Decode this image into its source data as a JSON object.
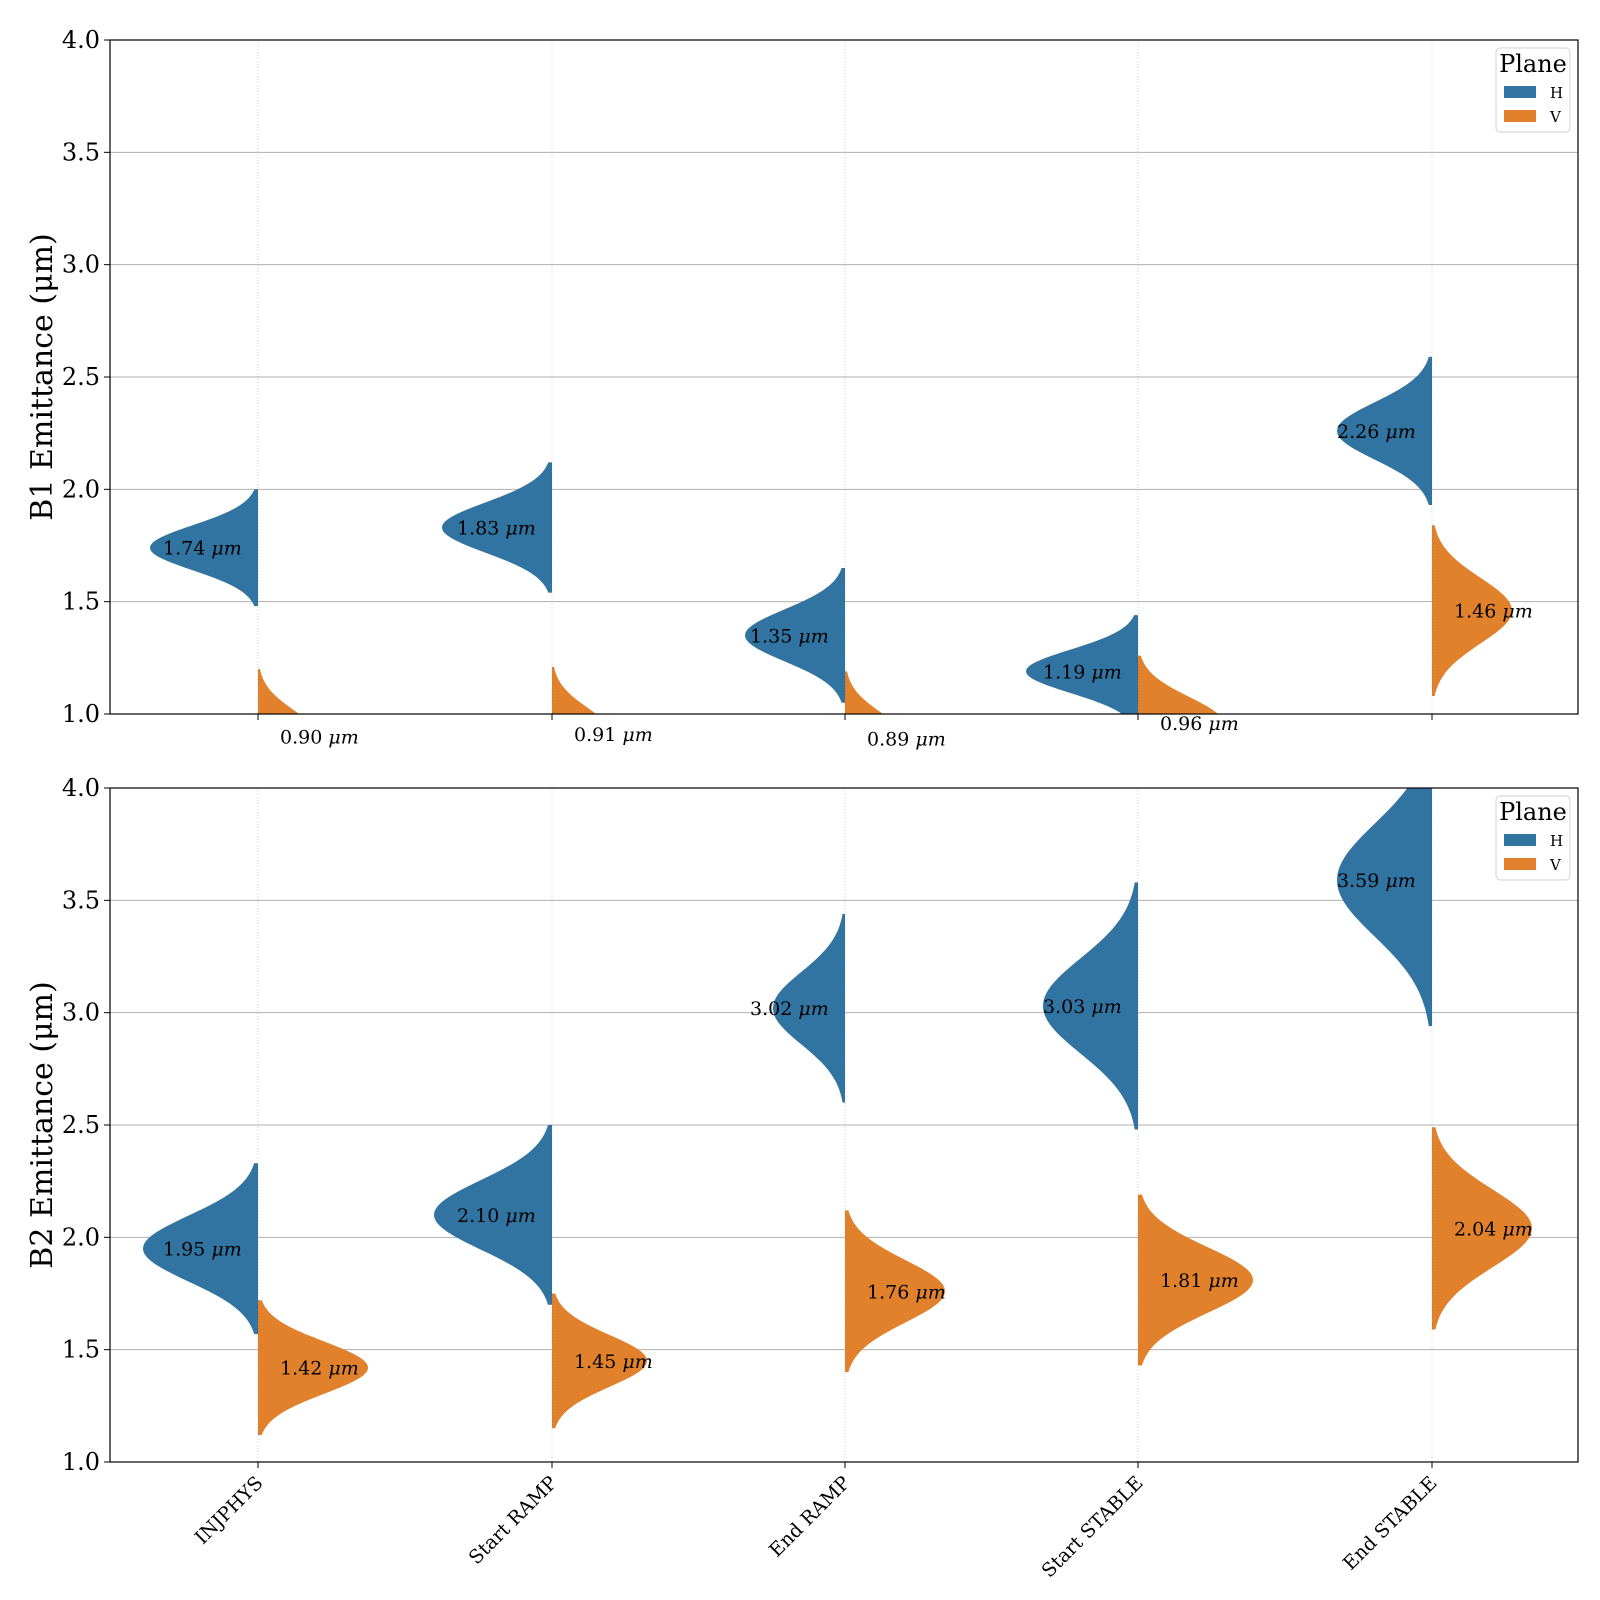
{
  "colors": {
    "H": "#3274a1",
    "V": "#e1812c",
    "grid": "#b0b0b0"
  },
  "chart_data": [
    {
      "type": "violin",
      "ylabel": "B1 Emittance (μm)",
      "ylim": [
        1.0,
        4.0
      ],
      "yticks": [
        "1.0",
        "1.5",
        "2.0",
        "2.5",
        "3.0",
        "3.5",
        "4.0"
      ],
      "grid": "horizontal",
      "legend": {
        "title": "Plane",
        "entries": [
          "H",
          "V"
        ],
        "position": "top-right"
      },
      "categories": [
        "INJPHYS",
        "Start RAMP",
        "End RAMP",
        "Start STABLE",
        "End STABLE"
      ],
      "series": [
        {
          "name": "H",
          "side": "left",
          "medians": [
            1.74,
            1.83,
            1.35,
            1.19,
            2.26
          ],
          "labels": [
            "1.74 μm",
            "1.83 μm",
            "1.35 μm",
            "1.19 μm",
            "2.26 μm"
          ]
        },
        {
          "name": "V",
          "side": "right",
          "medians": [
            0.9,
            0.91,
            0.89,
            0.96,
            1.46
          ],
          "labels": [
            "0.90 μm",
            "0.91 μm",
            "0.89 μm",
            "0.96 μm",
            "1.46 μm"
          ]
        }
      ]
    },
    {
      "type": "violin",
      "ylabel": "B2 Emittance (μm)",
      "ylim": [
        1.0,
        4.0
      ],
      "yticks": [
        "1.0",
        "1.5",
        "2.0",
        "2.5",
        "3.0",
        "3.5",
        "4.0"
      ],
      "grid": "horizontal",
      "legend": {
        "title": "Plane",
        "entries": [
          "H",
          "V"
        ],
        "position": "top-right"
      },
      "categories": [
        "INJPHYS",
        "Start RAMP",
        "End RAMP",
        "Start STABLE",
        "End STABLE"
      ],
      "xtick_labels": [
        "INJPHYS",
        "Start RAMP",
        "End RAMP",
        "Start STABLE",
        "End STABLE"
      ],
      "series": [
        {
          "name": "H",
          "side": "left",
          "medians": [
            1.95,
            2.1,
            3.02,
            3.03,
            3.59
          ],
          "labels": [
            "1.95 μm",
            "2.10 μm",
            "3.02 μm",
            "3.03 μm",
            "3.59 μm"
          ]
        },
        {
          "name": "V",
          "side": "right",
          "medians": [
            1.42,
            1.45,
            1.76,
            1.81,
            2.04
          ],
          "labels": [
            "1.42 μm",
            "1.45 μm",
            "1.76 μm",
            "1.81 μm",
            "2.04 μm"
          ]
        }
      ]
    }
  ]
}
